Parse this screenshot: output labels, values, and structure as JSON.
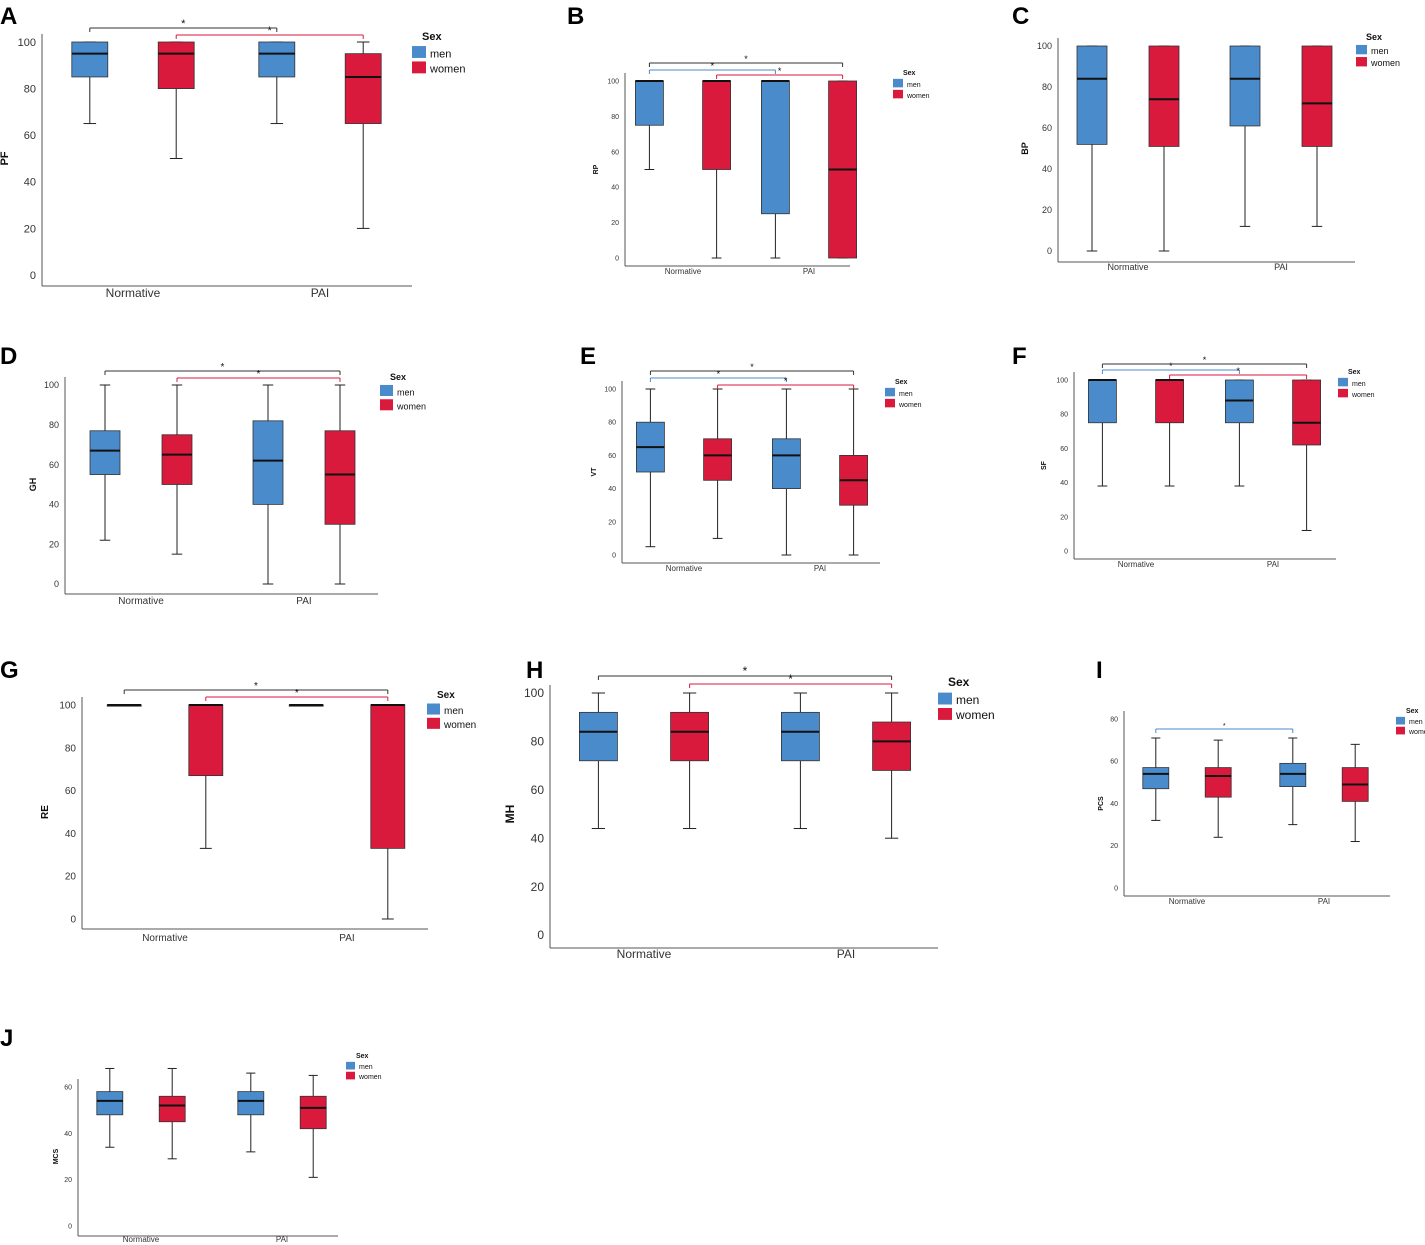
{
  "colors": {
    "men": "#4a8bcc",
    "women": "#d91a3d",
    "median": "#111111",
    "whisker": "#222222",
    "sig_black": "#333333",
    "sig_blue": "#4a8bcc",
    "sig_red": "#d91a3d"
  },
  "legend": {
    "title": "Sex",
    "men": "men",
    "women": "women"
  },
  "chart_data": [
    {
      "panel": "A",
      "type": "box",
      "ylabel": "PF",
      "ylim": [
        0,
        100
      ],
      "yticks": [
        0,
        20,
        40,
        60,
        80,
        100
      ],
      "categories": [
        "Normative",
        "PAI"
      ],
      "series": [
        {
          "name": "men",
          "boxes": [
            {
              "min": 65,
              "q1": 85,
              "median": 95,
              "q3": 100,
              "max": 100
            },
            {
              "min": 65,
              "q1": 85,
              "median": 95,
              "q3": 100,
              "max": 100
            }
          ]
        },
        {
          "name": "women",
          "boxes": [
            {
              "min": 50,
              "q1": 80,
              "median": 95,
              "q3": 100,
              "max": 100
            },
            {
              "min": 20,
              "q1": 65,
              "median": 85,
              "q3": 95,
              "max": 100
            }
          ]
        }
      ],
      "significance": [
        {
          "from": "Normative-men",
          "to": "PAI-men",
          "color": "black",
          "label": "*"
        },
        {
          "from": "Normative-women",
          "to": "PAI-women",
          "color": "red",
          "label": "*"
        }
      ]
    },
    {
      "panel": "B",
      "type": "box",
      "ylabel": "RP",
      "ylim": [
        0,
        100
      ],
      "yticks": [
        0,
        20,
        40,
        60,
        80,
        100
      ],
      "categories": [
        "Normative",
        "PAI"
      ],
      "series": [
        {
          "name": "men",
          "boxes": [
            {
              "min": 50,
              "q1": 75,
              "median": 100,
              "q3": 100,
              "max": 100
            },
            {
              "min": 0,
              "q1": 25,
              "median": 100,
              "q3": 100,
              "max": 100
            }
          ]
        },
        {
          "name": "women",
          "boxes": [
            {
              "min": 0,
              "q1": 50,
              "median": 100,
              "q3": 100,
              "max": 100
            },
            {
              "min": 0,
              "q1": 0,
              "median": 50,
              "q3": 100,
              "max": 100
            }
          ]
        }
      ],
      "significance": [
        {
          "from": "Normative-men",
          "to": "PAI-women",
          "color": "black",
          "label": "*"
        },
        {
          "from": "Normative-men",
          "to": "PAI-men",
          "color": "blue",
          "label": "*"
        },
        {
          "from": "Normative-women",
          "to": "PAI-women",
          "color": "red",
          "label": "*"
        }
      ]
    },
    {
      "panel": "C",
      "type": "box",
      "ylabel": "BP",
      "ylim": [
        0,
        100
      ],
      "yticks": [
        0,
        20,
        40,
        60,
        80,
        100
      ],
      "categories": [
        "Normative",
        "PAI"
      ],
      "series": [
        {
          "name": "men",
          "boxes": [
            {
              "min": 0,
              "q1": 52,
              "median": 84,
              "q3": 100,
              "max": 100
            },
            {
              "min": 12,
              "q1": 61,
              "median": 84,
              "q3": 100,
              "max": 100
            }
          ]
        },
        {
          "name": "women",
          "boxes": [
            {
              "min": 0,
              "q1": 51,
              "median": 74,
              "q3": 100,
              "max": 100
            },
            {
              "min": 12,
              "q1": 51,
              "median": 72,
              "q3": 100,
              "max": 100
            }
          ]
        }
      ],
      "significance": []
    },
    {
      "panel": "D",
      "type": "box",
      "ylabel": "GH",
      "ylim": [
        0,
        100
      ],
      "yticks": [
        0,
        20,
        40,
        60,
        80,
        100
      ],
      "categories": [
        "Normative",
        "PAI"
      ],
      "series": [
        {
          "name": "men",
          "boxes": [
            {
              "min": 22,
              "q1": 55,
              "median": 67,
              "q3": 77,
              "max": 100
            },
            {
              "min": 0,
              "q1": 40,
              "median": 62,
              "q3": 82,
              "max": 100
            }
          ]
        },
        {
          "name": "women",
          "boxes": [
            {
              "min": 15,
              "q1": 50,
              "median": 65,
              "q3": 75,
              "max": 100
            },
            {
              "min": 0,
              "q1": 30,
              "median": 55,
              "q3": 77,
              "max": 100
            }
          ]
        }
      ],
      "significance": [
        {
          "from": "Normative-men",
          "to": "PAI-women",
          "color": "black",
          "label": "*"
        },
        {
          "from": "Normative-women",
          "to": "PAI-women",
          "color": "red",
          "label": "*"
        }
      ]
    },
    {
      "panel": "E",
      "type": "box",
      "ylabel": "VT",
      "ylim": [
        0,
        100
      ],
      "yticks": [
        0,
        20,
        40,
        60,
        80,
        100
      ],
      "categories": [
        "Normative",
        "PAI"
      ],
      "series": [
        {
          "name": "men",
          "boxes": [
            {
              "min": 5,
              "q1": 50,
              "median": 65,
              "q3": 80,
              "max": 100
            },
            {
              "min": 0,
              "q1": 40,
              "median": 60,
              "q3": 70,
              "max": 100
            }
          ]
        },
        {
          "name": "women",
          "boxes": [
            {
              "min": 10,
              "q1": 45,
              "median": 60,
              "q3": 70,
              "max": 100
            },
            {
              "min": 0,
              "q1": 30,
              "median": 45,
              "q3": 60,
              "max": 100
            }
          ]
        }
      ],
      "significance": [
        {
          "from": "Normative-men",
          "to": "PAI-women",
          "color": "black",
          "label": "*"
        },
        {
          "from": "Normative-men",
          "to": "PAI-men",
          "color": "blue",
          "label": "*"
        },
        {
          "from": "Normative-women",
          "to": "PAI-women",
          "color": "red",
          "label": "*"
        }
      ]
    },
    {
      "panel": "F",
      "type": "box",
      "ylabel": "SF",
      "ylim": [
        0,
        100
      ],
      "yticks": [
        0,
        20,
        40,
        60,
        80,
        100
      ],
      "categories": [
        "Normative",
        "PAI"
      ],
      "series": [
        {
          "name": "men",
          "boxes": [
            {
              "min": 38,
              "q1": 75,
              "median": 100,
              "q3": 100,
              "max": 100
            },
            {
              "min": 38,
              "q1": 75,
              "median": 88,
              "q3": 100,
              "max": 100
            }
          ]
        },
        {
          "name": "women",
          "boxes": [
            {
              "min": 38,
              "q1": 75,
              "median": 100,
              "q3": 100,
              "max": 100
            },
            {
              "min": 12,
              "q1": 62,
              "median": 75,
              "q3": 100,
              "max": 100
            }
          ]
        }
      ],
      "significance": [
        {
          "from": "Normative-men",
          "to": "PAI-women",
          "color": "black",
          "label": "*"
        },
        {
          "from": "Normative-men",
          "to": "PAI-men",
          "color": "blue",
          "label": "*"
        },
        {
          "from": "Normative-women",
          "to": "PAI-women",
          "color": "red",
          "label": "*"
        }
      ]
    },
    {
      "panel": "G",
      "type": "box",
      "ylabel": "RE",
      "ylim": [
        0,
        100
      ],
      "yticks": [
        0,
        20,
        40,
        60,
        80,
        100
      ],
      "categories": [
        "Normative",
        "PAI"
      ],
      "series": [
        {
          "name": "men",
          "boxes": [
            {
              "min": 100,
              "q1": 100,
              "median": 100,
              "q3": 100,
              "max": 100
            },
            {
              "min": 100,
              "q1": 100,
              "median": 100,
              "q3": 100,
              "max": 100
            }
          ]
        },
        {
          "name": "women",
          "boxes": [
            {
              "min": 33,
              "q1": 67,
              "median": 100,
              "q3": 100,
              "max": 100
            },
            {
              "min": 0,
              "q1": 33,
              "median": 100,
              "q3": 100,
              "max": 100
            }
          ]
        }
      ],
      "significance": [
        {
          "from": "Normative-men",
          "to": "PAI-women",
          "color": "black",
          "label": "*"
        },
        {
          "from": "Normative-women",
          "to": "PAI-women",
          "color": "red",
          "label": "*"
        }
      ]
    },
    {
      "panel": "H",
      "type": "box",
      "ylabel": "MH",
      "ylim": [
        0,
        100
      ],
      "yticks": [
        0,
        20,
        40,
        60,
        80,
        100
      ],
      "categories": [
        "Normative",
        "PAI"
      ],
      "series": [
        {
          "name": "men",
          "boxes": [
            {
              "min": 44,
              "q1": 72,
              "median": 84,
              "q3": 92,
              "max": 100
            },
            {
              "min": 44,
              "q1": 72,
              "median": 84,
              "q3": 92,
              "max": 100
            }
          ]
        },
        {
          "name": "women",
          "boxes": [
            {
              "min": 44,
              "q1": 72,
              "median": 84,
              "q3": 92,
              "max": 100
            },
            {
              "min": 40,
              "q1": 68,
              "median": 80,
              "q3": 88,
              "max": 100
            }
          ]
        }
      ],
      "significance": [
        {
          "from": "Normative-men",
          "to": "PAI-women",
          "color": "black",
          "label": "*"
        },
        {
          "from": "Normative-women",
          "to": "PAI-women",
          "color": "red",
          "label": "*"
        }
      ]
    },
    {
      "panel": "I",
      "type": "box",
      "ylabel": "PCS",
      "ylim": [
        0,
        80
      ],
      "yticks": [
        0,
        20,
        40,
        60,
        80
      ],
      "categories": [
        "Normative",
        "PAI"
      ],
      "series": [
        {
          "name": "men",
          "boxes": [
            {
              "min": 32,
              "q1": 47,
              "median": 54,
              "q3": 57,
              "max": 71
            },
            {
              "min": 30,
              "q1": 48,
              "median": 54,
              "q3": 59,
              "max": 71
            }
          ]
        },
        {
          "name": "women",
          "boxes": [
            {
              "min": 24,
              "q1": 43,
              "median": 53,
              "q3": 57,
              "max": 70
            },
            {
              "min": 22,
              "q1": 41,
              "median": 49,
              "q3": 57,
              "max": 68
            }
          ]
        }
      ],
      "significance": [
        {
          "from": "Normative-men",
          "to": "PAI-men",
          "color": "blue",
          "label": "*"
        }
      ]
    },
    {
      "panel": "J",
      "type": "box",
      "ylabel": "MCS",
      "ylim": [
        0,
        60
      ],
      "yticks": [
        0,
        20,
        40,
        60
      ],
      "categories": [
        "Normative",
        "PAI"
      ],
      "series": [
        {
          "name": "men",
          "boxes": [
            {
              "min": 34,
              "q1": 48,
              "median": 54,
              "q3": 58,
              "max": 68
            },
            {
              "min": 32,
              "q1": 48,
              "median": 54,
              "q3": 58,
              "max": 66
            }
          ]
        },
        {
          "name": "women",
          "boxes": [
            {
              "min": 29,
              "q1": 45,
              "median": 52,
              "q3": 56,
              "max": 68
            },
            {
              "min": 21,
              "q1": 42,
              "median": 51,
              "q3": 56,
              "max": 65
            }
          ]
        }
      ],
      "significance": []
    }
  ]
}
